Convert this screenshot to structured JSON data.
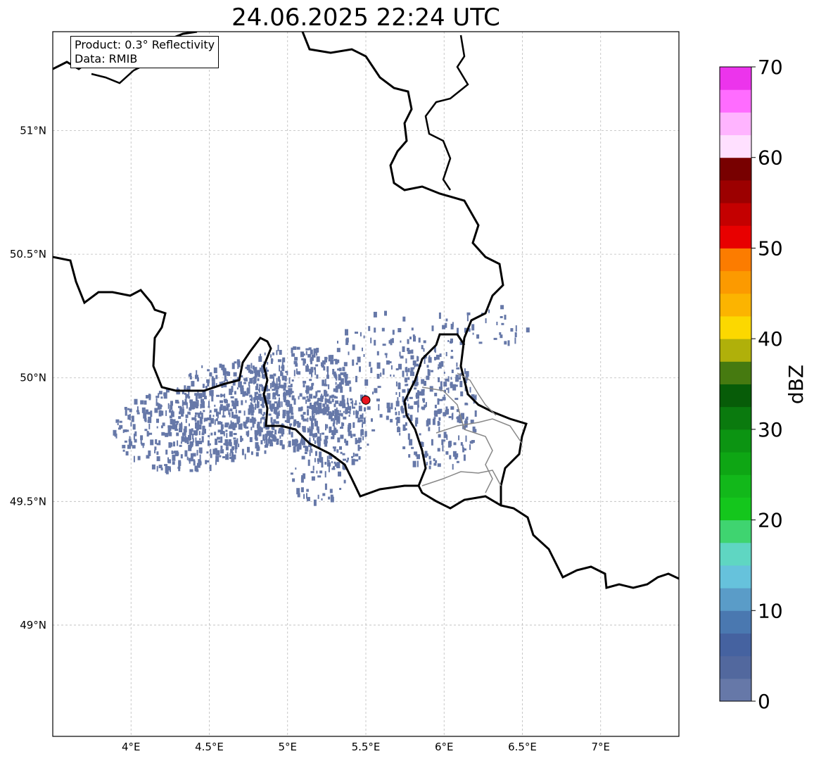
{
  "title": "24.06.2025 22:24 UTC",
  "info": {
    "product_line": "Product: 0.3° Reflectivity",
    "data_line": "Data: RMIB"
  },
  "map": {
    "extent": {
      "lon_min": 3.5,
      "lon_max": 7.5,
      "lat_min": 48.55,
      "lat_max": 51.4
    },
    "lon_ticks": [
      {
        "value": 4.0,
        "label": "4°E"
      },
      {
        "value": 4.5,
        "label": "4.5°E"
      },
      {
        "value": 5.0,
        "label": "5°E"
      },
      {
        "value": 5.5,
        "label": "5.5°E"
      },
      {
        "value": 6.0,
        "label": "6°E"
      },
      {
        "value": 6.5,
        "label": "6.5°E"
      },
      {
        "value": 7.0,
        "label": "7°E"
      }
    ],
    "lat_ticks": [
      {
        "value": 51.0,
        "label": "51°N"
      },
      {
        "value": 50.5,
        "label": "50.5°N"
      },
      {
        "value": 50.0,
        "label": "50°N"
      },
      {
        "value": 49.5,
        "label": "49.5°N"
      },
      {
        "value": 49.0,
        "label": "49°N"
      }
    ],
    "radar_site": {
      "lon": 5.5,
      "lat": 49.91,
      "color": "#e8141e"
    },
    "echo_color": "#6678a8",
    "border_color": "#000000",
    "admin_border_color": "#888888",
    "grid": true
  },
  "colorbar": {
    "label": "dBZ",
    "min": 0,
    "max": 70,
    "ticks": [
      {
        "value": 0,
        "label": "0"
      },
      {
        "value": 10,
        "label": "10"
      },
      {
        "value": 20,
        "label": "20"
      },
      {
        "value": 30,
        "label": "30"
      },
      {
        "value": 40,
        "label": "40"
      },
      {
        "value": 50,
        "label": "50"
      },
      {
        "value": 60,
        "label": "60"
      },
      {
        "value": 70,
        "label": "70"
      }
    ],
    "colors": [
      "#6678a8",
      "#52689e",
      "#4562a0",
      "#4a78b0",
      "#5a9cc8",
      "#66c2dc",
      "#5fd6c2",
      "#3fd470",
      "#14c61c",
      "#12b81a",
      "#0ea614",
      "#0c9412",
      "#0a7a0e",
      "#075c08",
      "#467a10",
      "#b0b00a",
      "#fcd800",
      "#fcb400",
      "#fc9a00",
      "#fc7c00",
      "#e80000",
      "#c40000",
      "#9c0000",
      "#780000",
      "#ffe0ff",
      "#ffb4ff",
      "#ff6cff",
      "#ec34ec"
    ]
  }
}
